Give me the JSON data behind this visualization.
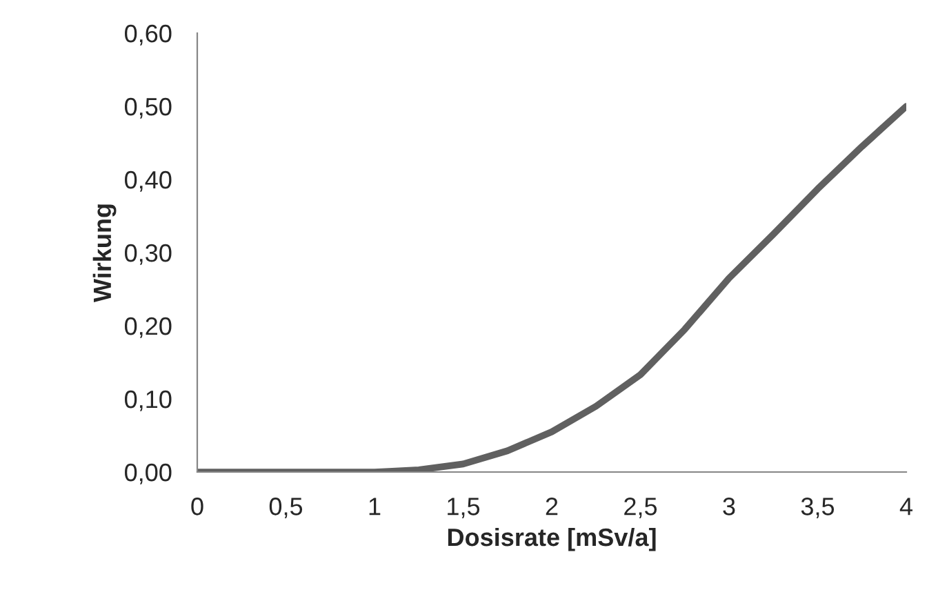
{
  "chart_data": {
    "type": "line",
    "xlabel": "Dosisrate [mSv/a]",
    "ylabel": "Wirkung",
    "x": [
      0,
      0.5,
      1,
      1.1,
      1.25,
      1.5,
      1.75,
      2,
      2.25,
      2.5,
      2.75,
      3,
      3.25,
      3.5,
      3.75,
      4
    ],
    "series": [
      {
        "color": "#606060",
        "values": [
          0,
          0,
          0,
          0.001,
          0.003,
          0.011,
          0.029,
          0.055,
          0.09,
          0.133,
          0.195,
          0.265,
          0.325,
          0.387,
          0.445,
          0.5
        ]
      }
    ],
    "xlim": [
      0,
      4
    ],
    "xticks": [
      {
        "value": 0,
        "label": "0"
      },
      {
        "value": 0.5,
        "label": "0,5"
      },
      {
        "value": 1,
        "label": "1"
      },
      {
        "value": 1.5,
        "label": "1,5"
      },
      {
        "value": 2,
        "label": "2"
      },
      {
        "value": 2.5,
        "label": "2,5"
      },
      {
        "value": 3,
        "label": "3"
      },
      {
        "value": 3.5,
        "label": "3,5"
      },
      {
        "value": 4,
        "label": "4"
      }
    ],
    "ylim": [
      0,
      0.6
    ],
    "yticks": [
      {
        "value": 0,
        "label": "0,00"
      },
      {
        "value": 0.1,
        "label": "0,10"
      },
      {
        "value": 0.2,
        "label": "0,20"
      },
      {
        "value": 0.3,
        "label": "0,30"
      },
      {
        "value": 0.4,
        "label": "0,40"
      },
      {
        "value": 0.5,
        "label": "0,50"
      },
      {
        "value": 0.6,
        "label": "0,60"
      }
    ],
    "grid": false,
    "legend": false,
    "marker": "none",
    "line_style": "solid"
  }
}
